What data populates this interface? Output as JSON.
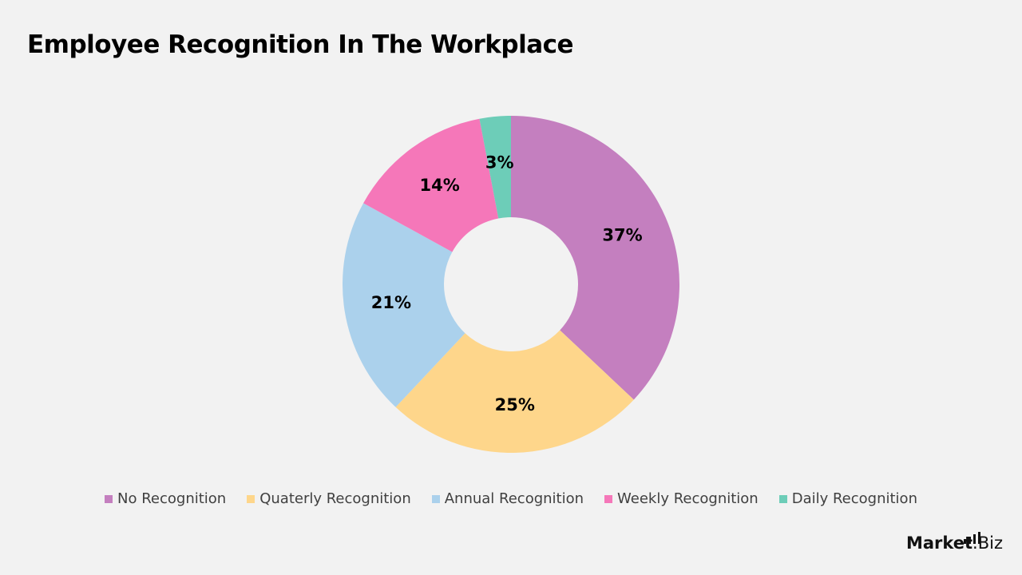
{
  "title": "Employee Recognition In The Workplace",
  "chart_data": {
    "type": "pie",
    "title": "Employee Recognition In The Workplace",
    "donut": true,
    "categories": [
      "No Recognition",
      "Quaterly Recognition",
      "Annual Recognition",
      "Weekly Recognition",
      "Daily Recognition"
    ],
    "values": [
      37,
      25,
      21,
      14,
      3
    ],
    "labels": [
      "37%",
      "25%",
      "21%",
      "14%",
      "3%"
    ],
    "colors": [
      "#c47fbf",
      "#fed68b",
      "#abd1ec",
      "#f577b9",
      "#6dcdb8"
    ],
    "legend": "bottom"
  },
  "logo": {
    "brand": "Market",
    "suffix": ".Biz"
  }
}
